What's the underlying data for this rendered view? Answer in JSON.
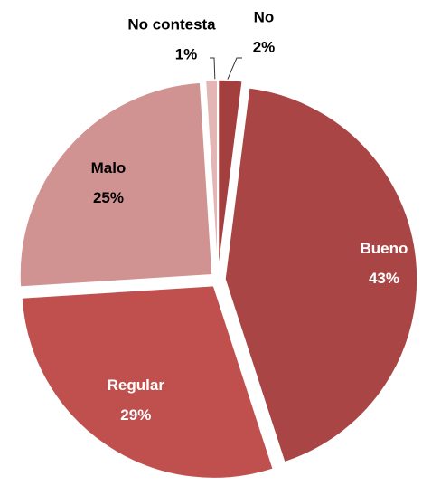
{
  "chart_data": {
    "type": "pie",
    "categories": [
      "No",
      "Bueno",
      "Regular",
      "Malo",
      "No contesta"
    ],
    "values": [
      2,
      43,
      29,
      25,
      1
    ],
    "value_labels": [
      "2%",
      "43%",
      "29%",
      "25%",
      "1%"
    ],
    "colors": [
      "#a33f3e",
      "#a94645",
      "#c0504d",
      "#d09392",
      "#e3b6b5"
    ]
  }
}
